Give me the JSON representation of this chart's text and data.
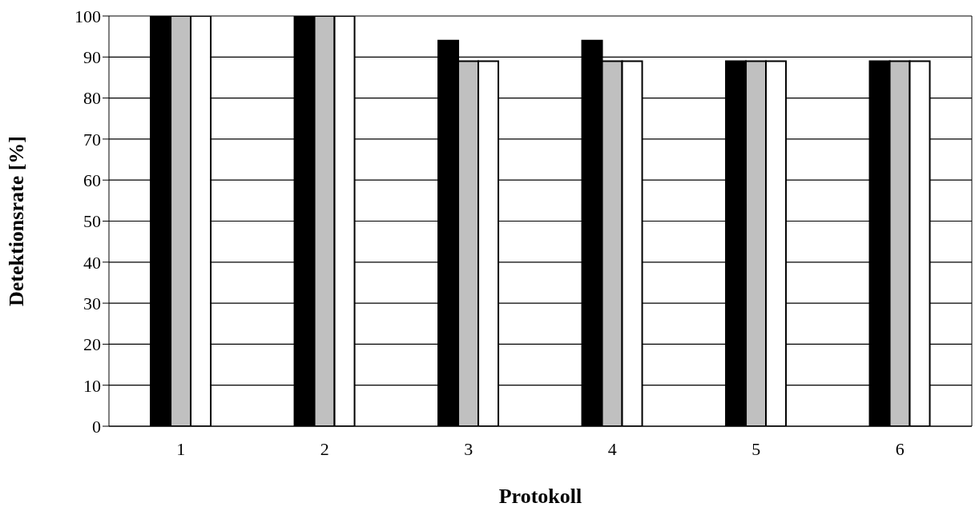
{
  "chart_data": {
    "type": "bar",
    "xlabel": "Protokoll",
    "ylabel": "Detektionsrate [%]",
    "categories": [
      "1",
      "2",
      "3",
      "4",
      "5",
      "6"
    ],
    "series": [
      {
        "color": "#000000",
        "values": [
          100,
          100,
          94,
          94,
          89,
          89
        ]
      },
      {
        "color": "#c0c0c0",
        "values": [
          100,
          100,
          89,
          89,
          89,
          89
        ]
      },
      {
        "color": "#ffffff",
        "values": [
          100,
          100,
          89,
          89,
          89,
          89
        ]
      }
    ],
    "ylim": [
      0,
      100
    ],
    "yticks": [
      0,
      10,
      20,
      30,
      40,
      50,
      60,
      70,
      80,
      90,
      100
    ],
    "grid": "y",
    "legend": false
  }
}
